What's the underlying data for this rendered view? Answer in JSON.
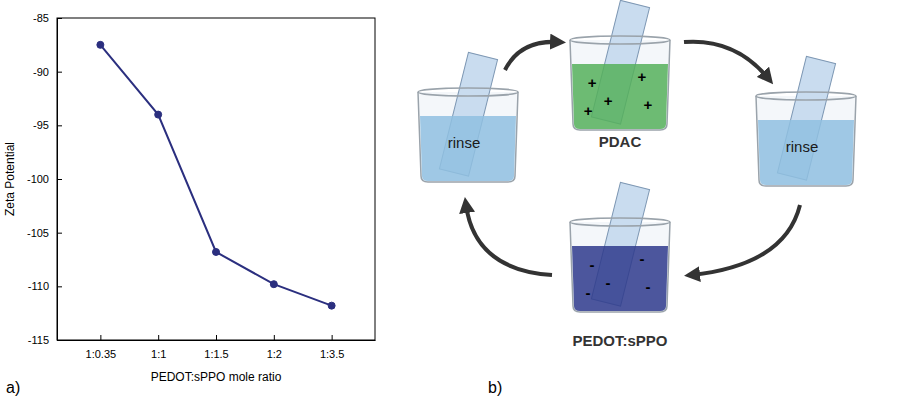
{
  "chart_data": {
    "type": "line",
    "categories": [
      "1:0.35",
      "1:1",
      "1:1.5",
      "1:2",
      "1:3.5"
    ],
    "values": [
      -87.5,
      -94,
      -106.8,
      -109.8,
      -111.8
    ],
    "color": "#2b2f7f",
    "marker": "circle",
    "ylim": [
      -115,
      -85
    ],
    "yticks": [
      -115,
      -110,
      -105,
      -100,
      -95,
      -90,
      -85
    ],
    "xlabel": "PEDOT:sPPO mole ratio",
    "ylabel": "Zeta Potential"
  },
  "panel_labels": [
    "a)",
    "b)"
  ],
  "diagram": {
    "steps": [
      {
        "label": "PDAC",
        "color": "#55b05a",
        "charge": "+"
      },
      {
        "label": "rinse",
        "color": "#8fbfe0"
      },
      {
        "label": "PEDOT:sPPO",
        "color": "#2e3a8c",
        "charge": "-"
      },
      {
        "label": "rinse",
        "color": "#8fbfe0"
      }
    ]
  }
}
